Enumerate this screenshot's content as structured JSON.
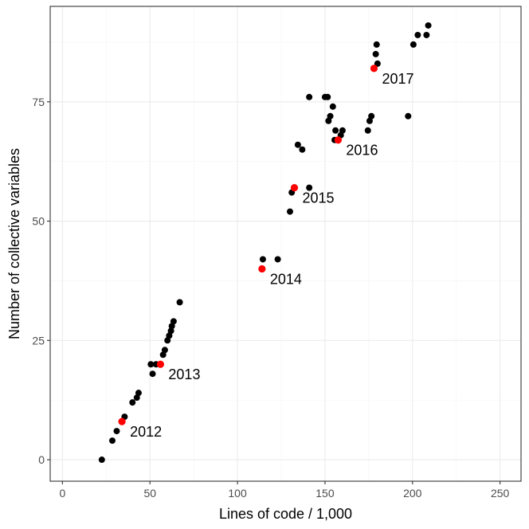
{
  "chart_data": {
    "type": "scatter",
    "title": "",
    "xlabel": "Lines of code / 1,000",
    "ylabel": "Number of collective variables",
    "xlim": [
      -7,
      262
    ],
    "ylim": [
      -4.5,
      95
    ],
    "x_ticks": [
      0,
      50,
      100,
      150,
      200,
      250
    ],
    "y_ticks": [
      0,
      25,
      50,
      75
    ],
    "grid": true,
    "colors": {
      "point": "#000000",
      "highlight": "#ff0000",
      "grid": "#ebebeb",
      "border": "#333333"
    },
    "series": [
      {
        "color": "#000000",
        "points": [
          [
            22.5,
            0
          ],
          [
            28.5,
            4
          ],
          [
            31,
            6
          ],
          [
            35.5,
            9
          ],
          [
            40,
            12
          ],
          [
            42.5,
            13
          ],
          [
            43.5,
            14
          ],
          [
            50.5,
            20
          ],
          [
            51.5,
            18
          ],
          [
            53.5,
            20
          ],
          [
            57.5,
            22
          ],
          [
            58.5,
            23
          ],
          [
            60,
            25
          ],
          [
            61,
            26
          ],
          [
            62,
            27
          ],
          [
            62.5,
            28
          ],
          [
            63.5,
            29
          ],
          [
            67,
            33
          ],
          [
            114.5,
            42
          ],
          [
            123,
            42
          ],
          [
            130,
            52
          ],
          [
            131,
            56
          ],
          [
            141,
            57
          ],
          [
            134.5,
            66
          ],
          [
            137,
            65
          ],
          [
            141,
            76
          ],
          [
            150,
            76
          ],
          [
            151.5,
            76
          ],
          [
            152,
            71
          ],
          [
            153,
            72
          ],
          [
            154.5,
            74
          ],
          [
            155.5,
            67
          ],
          [
            156,
            69
          ],
          [
            159,
            68
          ],
          [
            160,
            69
          ],
          [
            174.5,
            69
          ],
          [
            175.5,
            71
          ],
          [
            176.5,
            72
          ],
          [
            179,
            85
          ],
          [
            179.5,
            87
          ],
          [
            180,
            83
          ],
          [
            197.5,
            72
          ],
          [
            200.5,
            87
          ],
          [
            203,
            89
          ],
          [
            208,
            89
          ],
          [
            209,
            91
          ]
        ]
      },
      {
        "color": "#ff0000",
        "points": [
          [
            34,
            8
          ],
          [
            56,
            20
          ],
          [
            114,
            40
          ],
          [
            132.5,
            57
          ],
          [
            157.5,
            67
          ],
          [
            178,
            82
          ]
        ]
      }
    ],
    "annotations": [
      {
        "label": "2012",
        "x": 34,
        "y": 8
      },
      {
        "label": "2013",
        "x": 56,
        "y": 20
      },
      {
        "label": "2014",
        "x": 114,
        "y": 40
      },
      {
        "label": "2015",
        "x": 132.5,
        "y": 57
      },
      {
        "label": "2016",
        "x": 157.5,
        "y": 67
      },
      {
        "label": "2017",
        "x": 178,
        "y": 82
      }
    ]
  }
}
